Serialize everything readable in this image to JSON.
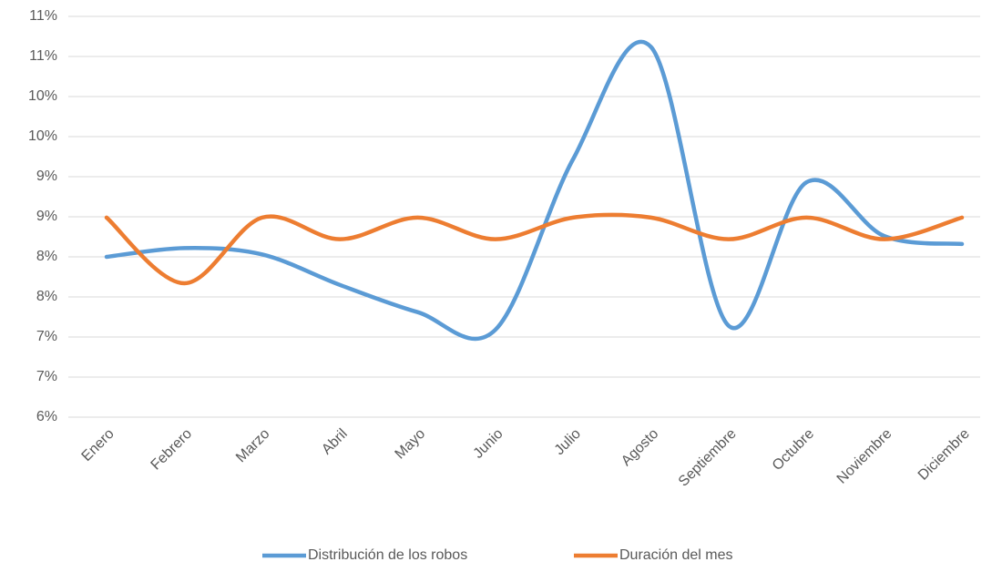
{
  "chart_data": {
    "type": "line",
    "categories": [
      "Enero",
      "Febrero",
      "Marzo",
      "Abril",
      "Mayo",
      "Junio",
      "Julio",
      "Agosto",
      "Septiembre",
      "Octubre",
      "Noviembre",
      "Diciembre"
    ],
    "series": [
      {
        "name": "Distribución de los robos",
        "color": "#5b9bd5",
        "values": [
          8.0,
          8.11,
          8.03,
          7.65,
          7.31,
          7.09,
          9.22,
          10.62,
          7.14,
          8.93,
          8.26,
          8.16
        ]
      },
      {
        "name": "Duración del mes",
        "color": "#ed7d31",
        "values": [
          8.49,
          7.67,
          8.49,
          8.22,
          8.49,
          8.22,
          8.49,
          8.49,
          8.22,
          8.49,
          8.22,
          8.49
        ]
      }
    ],
    "ylim": [
      6,
      11
    ],
    "yticks": [
      {
        "value": 6,
        "label": "6%"
      },
      {
        "value": 6.5,
        "label": "7%"
      },
      {
        "value": 7,
        "label": "7%"
      },
      {
        "value": 7.5,
        "label": "8%"
      },
      {
        "value": 8,
        "label": "8%"
      },
      {
        "value": 8.5,
        "label": "9%"
      },
      {
        "value": 9,
        "label": "9%"
      },
      {
        "value": 9.5,
        "label": "10%"
      },
      {
        "value": 10,
        "label": "10%"
      },
      {
        "value": 10.5,
        "label": "11%"
      },
      {
        "value": 11,
        "label": "11%"
      }
    ],
    "grid": true,
    "legend": "bottom",
    "smooth": true
  }
}
